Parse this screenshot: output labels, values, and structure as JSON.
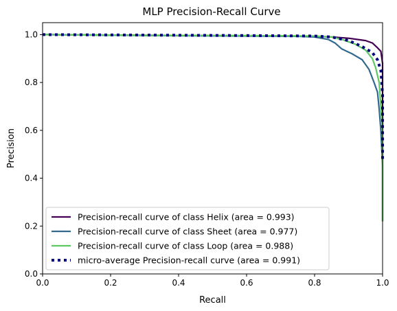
{
  "chart_data": {
    "type": "line",
    "title": "MLP Precision-Recall Curve",
    "xlabel": "Recall",
    "ylabel": "Precision",
    "xlim": [
      0.0,
      1.0
    ],
    "ylim": [
      0.0,
      1.05
    ],
    "xticks": [
      "0.0",
      "0.2",
      "0.4",
      "0.6",
      "0.8",
      "1.0"
    ],
    "yticks": [
      "0.0",
      "0.2",
      "0.4",
      "0.6",
      "0.8",
      "1.0"
    ],
    "grid": false,
    "legend_position": "lower-left",
    "series": [
      {
        "name": "Precision-recall curve of class Helix (area = 0.993)",
        "color": "#440154",
        "style": "solid",
        "points": [
          [
            0.0,
            1.0
          ],
          [
            0.2,
            0.998
          ],
          [
            0.5,
            0.996
          ],
          [
            0.7,
            0.995
          ],
          [
            0.8,
            0.993
          ],
          [
            0.85,
            0.99
          ],
          [
            0.9,
            0.985
          ],
          [
            0.95,
            0.975
          ],
          [
            0.97,
            0.965
          ],
          [
            0.985,
            0.945
          ],
          [
            0.995,
            0.93
          ],
          [
            1.0,
            0.88
          ],
          [
            1.0,
            0.22
          ]
        ]
      },
      {
        "name": "Precision-recall curve of class Sheet (area = 0.977)",
        "color": "#31688e",
        "style": "solid",
        "points": [
          [
            0.0,
            1.0
          ],
          [
            0.3,
            0.996
          ],
          [
            0.6,
            0.994
          ],
          [
            0.75,
            0.993
          ],
          [
            0.8,
            0.99
          ],
          [
            0.84,
            0.98
          ],
          [
            0.86,
            0.965
          ],
          [
            0.88,
            0.94
          ],
          [
            0.91,
            0.92
          ],
          [
            0.94,
            0.895
          ],
          [
            0.96,
            0.855
          ],
          [
            0.975,
            0.8
          ],
          [
            0.985,
            0.76
          ],
          [
            0.99,
            0.69
          ],
          [
            0.995,
            0.6
          ],
          [
            1.0,
            0.45
          ],
          [
            1.0,
            0.22
          ]
        ]
      },
      {
        "name": "Precision-recall curve of class Loop (area = 0.988)",
        "color": "#5ec962",
        "style": "solid",
        "points": [
          [
            0.0,
            1.0
          ],
          [
            0.3,
            0.997
          ],
          [
            0.6,
            0.996
          ],
          [
            0.8,
            0.994
          ],
          [
            0.85,
            0.99
          ],
          [
            0.88,
            0.98
          ],
          [
            0.92,
            0.96
          ],
          [
            0.95,
            0.935
          ],
          [
            0.97,
            0.9
          ],
          [
            0.98,
            0.86
          ],
          [
            0.99,
            0.8
          ],
          [
            0.995,
            0.7
          ],
          [
            1.0,
            0.6
          ],
          [
            1.0,
            0.22
          ]
        ]
      },
      {
        "name": "micro-average Precision-recall curve (area = 0.991)",
        "color": "#000080",
        "style": "dotted",
        "points": [
          [
            0.0,
            1.0
          ],
          [
            0.3,
            0.998
          ],
          [
            0.6,
            0.996
          ],
          [
            0.8,
            0.994
          ],
          [
            0.85,
            0.99
          ],
          [
            0.9,
            0.975
          ],
          [
            0.94,
            0.95
          ],
          [
            0.97,
            0.925
          ],
          [
            0.985,
            0.895
          ],
          [
            0.995,
            0.85
          ],
          [
            1.0,
            0.75
          ],
          [
            1.0,
            0.48
          ]
        ]
      }
    ]
  }
}
